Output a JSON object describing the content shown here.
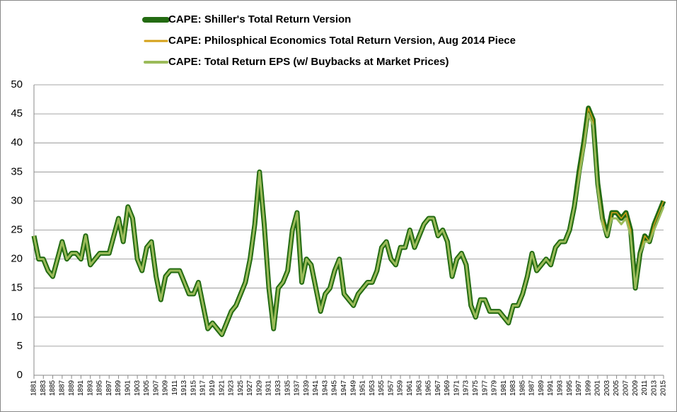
{
  "chart_data": {
    "type": "line",
    "x": [
      1881,
      1882,
      1883,
      1884,
      1885,
      1886,
      1887,
      1888,
      1889,
      1890,
      1891,
      1892,
      1893,
      1894,
      1895,
      1896,
      1897,
      1898,
      1899,
      1900,
      1901,
      1902,
      1903,
      1904,
      1905,
      1906,
      1907,
      1908,
      1909,
      1910,
      1911,
      1912,
      1913,
      1914,
      1915,
      1916,
      1917,
      1918,
      1919,
      1920,
      1921,
      1922,
      1923,
      1924,
      1925,
      1926,
      1927,
      1928,
      1929,
      1930,
      1931,
      1932,
      1933,
      1934,
      1935,
      1936,
      1937,
      1938,
      1939,
      1940,
      1941,
      1942,
      1943,
      1944,
      1945,
      1946,
      1947,
      1948,
      1949,
      1950,
      1951,
      1952,
      1953,
      1954,
      1955,
      1956,
      1957,
      1958,
      1959,
      1960,
      1961,
      1962,
      1963,
      1964,
      1965,
      1966,
      1967,
      1968,
      1969,
      1970,
      1971,
      1972,
      1973,
      1974,
      1975,
      1976,
      1977,
      1978,
      1979,
      1980,
      1981,
      1982,
      1983,
      1984,
      1985,
      1986,
      1987,
      1988,
      1989,
      1990,
      1991,
      1992,
      1993,
      1994,
      1995,
      1996,
      1997,
      1998,
      1999,
      2000,
      2001,
      2002,
      2003,
      2004,
      2005,
      2006,
      2007,
      2008,
      2009,
      2010,
      2011,
      2012,
      2013,
      2014,
      2015
    ],
    "series": [
      {
        "name": "CAPE: Shiller's Total Return Version",
        "color": "#236b12",
        "values": [
          24,
          20,
          20,
          18,
          17,
          20,
          23,
          20,
          21,
          21,
          20,
          24,
          19,
          20,
          21,
          21,
          21,
          24,
          27,
          23,
          29,
          27,
          20,
          18,
          22,
          23,
          17,
          13,
          17,
          18,
          18,
          18,
          16,
          14,
          14,
          16,
          12,
          8,
          9,
          8,
          7,
          9,
          11,
          12,
          14,
          16,
          20,
          26,
          35,
          26,
          15,
          8,
          15,
          16,
          18,
          25,
          28,
          16,
          20,
          19,
          15,
          11,
          14,
          15,
          18,
          20,
          14,
          13,
          12,
          14,
          15,
          16,
          16,
          18,
          22,
          23,
          20,
          19,
          22,
          22,
          25,
          22,
          24,
          26,
          27,
          27,
          24,
          25,
          23,
          17,
          20,
          21,
          19,
          12,
          10,
          13,
          13,
          11,
          11,
          11,
          10,
          9,
          12,
          12,
          14,
          17,
          21,
          18,
          19,
          20,
          19,
          22,
          23,
          23,
          25,
          29,
          35,
          40,
          46,
          44,
          33,
          27,
          24,
          28,
          28,
          27,
          28,
          25,
          15,
          21,
          24,
          23,
          26,
          28,
          30
        ]
      },
      {
        "name": "CAPE: Philosphical Economics Total Return Version, Aug 2014 Piece",
        "color": "#d4a017",
        "values": [
          24,
          20,
          20,
          18,
          17,
          20,
          23,
          20,
          21,
          21,
          20,
          24,
          19,
          20,
          21,
          21,
          21,
          24,
          27,
          23,
          29,
          27,
          20,
          18,
          22,
          23,
          17,
          13,
          17,
          18,
          18,
          18,
          16,
          14,
          14,
          16,
          12,
          8,
          9,
          8,
          7,
          9,
          11,
          12,
          14,
          16,
          20,
          26,
          35,
          26,
          15,
          8,
          15,
          16,
          18,
          25,
          28,
          16,
          20,
          19,
          15,
          11,
          14,
          15,
          18,
          20,
          14,
          13,
          12,
          14,
          15,
          16,
          16,
          18,
          22,
          23,
          20,
          19,
          22,
          22,
          25,
          22,
          24,
          26,
          27,
          27,
          24,
          25,
          23,
          17,
          20,
          21,
          19,
          12,
          10,
          13,
          13,
          11,
          11,
          11,
          10,
          9,
          12,
          12,
          14,
          17,
          21,
          18,
          19,
          20,
          19,
          22,
          23,
          23,
          25,
          29,
          35,
          40,
          46,
          44,
          33,
          27,
          24,
          28,
          28,
          27,
          28,
          25,
          15,
          21,
          24,
          23,
          26,
          28,
          30
        ]
      },
      {
        "name": "CAPE: Total Return EPS (w/ Buybacks at Market Prices)",
        "color": "#9bbb59",
        "values": [
          24,
          20,
          20,
          18,
          17,
          20,
          23,
          20,
          21,
          21,
          20,
          24,
          19,
          20,
          21,
          21,
          21,
          24,
          27,
          23,
          29,
          27,
          20,
          18,
          22,
          23,
          17,
          13,
          17,
          18,
          18,
          18,
          16,
          14,
          14,
          16,
          12,
          8,
          9,
          8,
          7,
          9,
          11,
          12,
          14,
          16,
          20,
          26,
          35,
          26,
          15,
          8,
          15,
          16,
          18,
          25,
          28,
          16,
          20,
          19,
          15,
          11,
          14,
          15,
          18,
          20,
          14,
          13,
          12,
          14,
          15,
          16,
          16,
          18,
          22,
          23,
          20,
          19,
          22,
          22,
          25,
          22,
          24,
          26,
          27,
          27,
          24,
          25,
          23,
          17,
          20,
          21,
          19,
          12,
          10,
          13,
          13,
          11,
          11,
          11,
          10,
          9,
          12,
          12,
          14,
          17,
          21,
          18,
          19,
          20,
          19,
          22,
          23,
          23,
          25,
          29,
          34,
          39,
          45,
          43,
          32,
          26,
          24,
          27,
          27,
          26,
          27,
          24,
          15,
          21,
          23,
          23,
          25,
          27,
          29
        ]
      }
    ],
    "xlim": [
      1881,
      2015
    ],
    "xticks": [
      1881,
      1883,
      1885,
      1887,
      1889,
      1891,
      1893,
      1895,
      1897,
      1899,
      1901,
      1903,
      1905,
      1907,
      1909,
      1911,
      1913,
      1915,
      1917,
      1919,
      1921,
      1923,
      1925,
      1927,
      1929,
      1931,
      1933,
      1935,
      1937,
      1939,
      1941,
      1943,
      1945,
      1947,
      1949,
      1951,
      1953,
      1955,
      1957,
      1959,
      1961,
      1963,
      1965,
      1967,
      1969,
      1971,
      1973,
      1975,
      1977,
      1979,
      1981,
      1983,
      1985,
      1987,
      1989,
      1991,
      1993,
      1995,
      1997,
      1999,
      2001,
      2003,
      2005,
      2007,
      2009,
      2011,
      2013,
      2015
    ],
    "ylim": [
      0,
      50
    ],
    "yticks": [
      0,
      5,
      10,
      15,
      20,
      25,
      30,
      35,
      40,
      45,
      50
    ],
    "grid": true
  }
}
